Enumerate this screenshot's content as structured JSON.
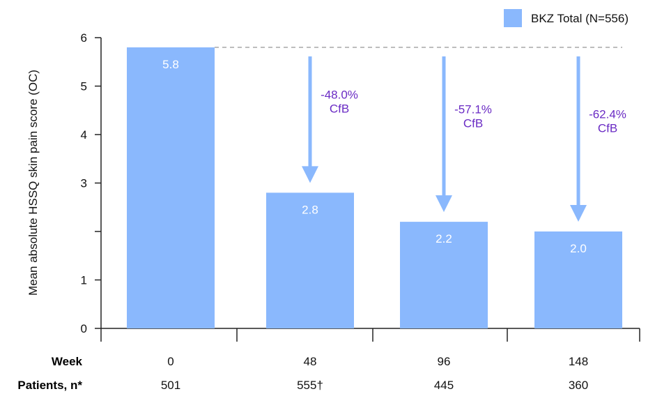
{
  "chart_data": {
    "type": "bar",
    "ylabel": "Mean absolute HSSQ skin pain score (OC)",
    "ylim": [
      0,
      6
    ],
    "yticks": [
      {
        "value": 0,
        "label": "0"
      },
      {
        "value": 1,
        "label": "1"
      },
      {
        "value": 2,
        "label": ""
      },
      {
        "value": 3,
        "label": "3"
      },
      {
        "value": 4,
        "label": "4"
      },
      {
        "value": 5,
        "label": "5"
      },
      {
        "value": 6,
        "label": "6"
      }
    ],
    "categories": [
      "0",
      "48",
      "96",
      "148"
    ],
    "series": [
      {
        "name": "BKZ Total (N=556)",
        "values": [
          5.8,
          2.8,
          2.2,
          2.0
        ],
        "value_labels": [
          "5.8",
          "2.8",
          "2.2",
          "2.0"
        ]
      }
    ],
    "row_labels": {
      "week": "Week",
      "patients": "Patients, n*"
    },
    "patients": [
      "501",
      "555†",
      "445",
      "360"
    ],
    "annotations": [
      {
        "category_index": 1,
        "line1": "-48.0%",
        "line2": "CfB"
      },
      {
        "category_index": 2,
        "line1": "-57.1%",
        "line2": "CfB"
      },
      {
        "category_index": 3,
        "line1": "-62.4%",
        "line2": "CfB"
      }
    ],
    "baseline_reference": 5.8,
    "legend_position": "top-right",
    "grid": false,
    "colors": {
      "bar": "#8ab8fd",
      "annotation_text": "#6a2bc4",
      "axis": "#222222",
      "reference_line": "#a6a6a6",
      "value_label": "#ffffff"
    }
  }
}
